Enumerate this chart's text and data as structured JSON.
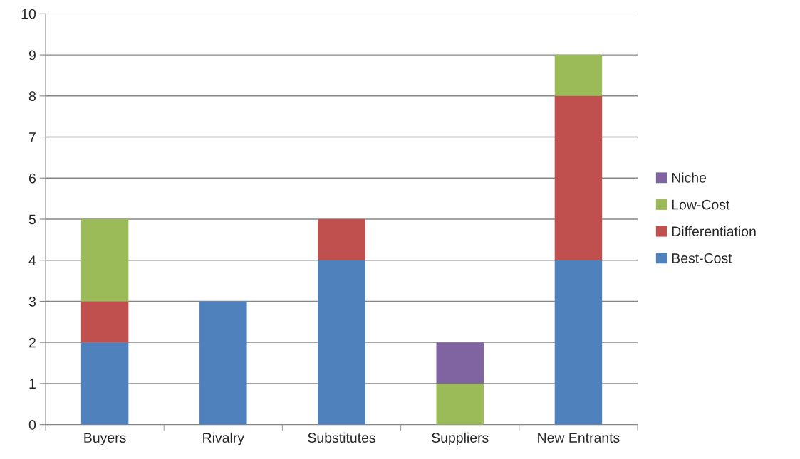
{
  "chart_data": {
    "type": "bar",
    "stacked": true,
    "categories": [
      "Buyers",
      "Rivalry",
      "Substitutes",
      "Suppliers",
      "New Entrants"
    ],
    "series": [
      {
        "name": "Best-Cost",
        "color": "#4f81bd",
        "values": [
          2,
          3,
          4,
          0,
          4
        ]
      },
      {
        "name": "Differentiation",
        "color": "#c0504d",
        "values": [
          1,
          0,
          1,
          0,
          4
        ]
      },
      {
        "name": "Low-Cost",
        "color": "#9bbb59",
        "values": [
          2,
          0,
          0,
          1,
          1
        ]
      },
      {
        "name": "Niche",
        "color": "#8064a2",
        "values": [
          0,
          0,
          0,
          1,
          0
        ]
      }
    ],
    "ylim": [
      0,
      10
    ],
    "yticks": [
      0,
      1,
      2,
      3,
      4,
      5,
      6,
      7,
      8,
      9,
      10
    ],
    "grid": "y",
    "legend": "right"
  }
}
